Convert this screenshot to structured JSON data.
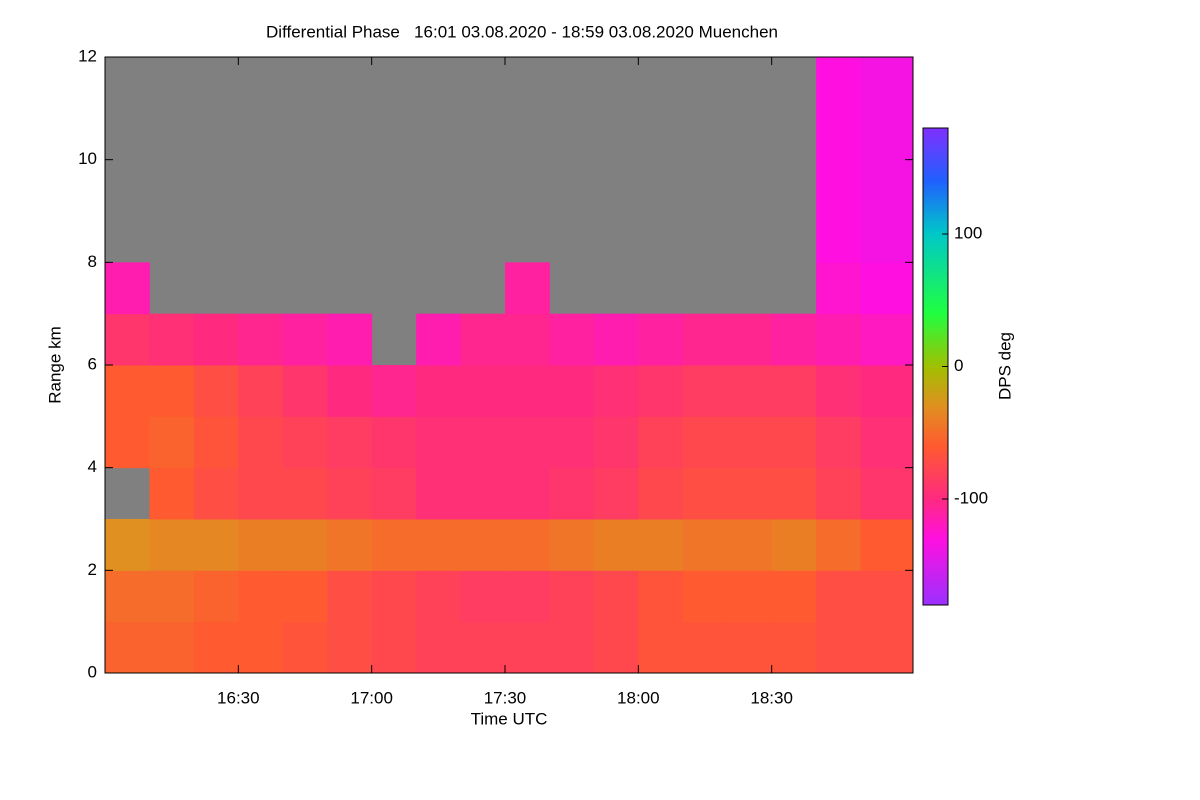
{
  "chart_data": {
    "type": "heatmap",
    "title": "Differential Phase   16:01 03.08.2020 - 18:59 03.08.2020 Muenchen",
    "xlabel": "Time UTC",
    "ylabel": "Range km",
    "colorbar_label": "DPS deg",
    "xlim": [
      16.0,
      19.03
    ],
    "xticks": [
      {
        "value": 16.5,
        "label": "16:30"
      },
      {
        "value": 17.0,
        "label": "17:00"
      },
      {
        "value": 17.5,
        "label": "17:30"
      },
      {
        "value": 18.0,
        "label": "18:00"
      },
      {
        "value": 18.5,
        "label": "18:30"
      }
    ],
    "ylim": [
      0,
      12
    ],
    "yticks": [
      0,
      2,
      4,
      6,
      8,
      10,
      12
    ],
    "clim": [
      -180,
      180
    ],
    "cticks": [
      -100,
      0,
      100
    ],
    "xbins": [
      16.0,
      16.1667,
      16.3333,
      16.5,
      16.6667,
      16.8333,
      17.0,
      17.1667,
      17.3333,
      17.5,
      17.6667,
      17.8333,
      18.0,
      18.1667,
      18.3333,
      18.5,
      18.6667,
      18.8333,
      19.03
    ],
    "ybins": [
      0,
      1,
      2,
      3,
      4,
      5,
      6,
      7,
      8,
      9,
      10,
      11,
      12
    ],
    "z": [
      [
        -55,
        -55,
        -60,
        -60,
        -65,
        -70,
        -75,
        -80,
        -80,
        -80,
        -80,
        -75,
        -65,
        -65,
        -65,
        -65,
        -70,
        -70
      ],
      [
        -50,
        -50,
        -55,
        -60,
        -60,
        -70,
        -75,
        -80,
        -85,
        -85,
        -80,
        -75,
        -65,
        -60,
        -60,
        -60,
        -70,
        -70
      ],
      [
        -30,
        -35,
        -35,
        -40,
        -40,
        -45,
        -50,
        -50,
        -50,
        -50,
        -45,
        -40,
        -40,
        -45,
        -45,
        -40,
        -50,
        -60
      ],
      [
        null,
        -60,
        -70,
        -75,
        -75,
        -80,
        -85,
        -95,
        -95,
        -95,
        -90,
        -85,
        -75,
        -70,
        -70,
        -70,
        -80,
        -90
      ],
      [
        -60,
        -55,
        -65,
        -75,
        -80,
        -85,
        -90,
        -95,
        -95,
        -95,
        -95,
        -90,
        -80,
        -75,
        -75,
        -75,
        -85,
        -95
      ],
      [
        -60,
        -60,
        -70,
        -80,
        -90,
        -100,
        -105,
        -100,
        -100,
        -100,
        -100,
        -95,
        -90,
        -85,
        -85,
        -85,
        -95,
        -100
      ],
      [
        -90,
        -95,
        -100,
        -105,
        -110,
        -115,
        null,
        -115,
        -105,
        -105,
        -110,
        -115,
        -110,
        -105,
        -105,
        -110,
        -115,
        -120
      ],
      [
        -115,
        null,
        null,
        null,
        null,
        null,
        null,
        null,
        null,
        -110,
        null,
        null,
        null,
        null,
        null,
        null,
        -125,
        -130
      ],
      [
        null,
        null,
        null,
        null,
        null,
        null,
        null,
        null,
        null,
        null,
        null,
        null,
        null,
        null,
        null,
        null,
        -130,
        -135
      ],
      [
        null,
        null,
        null,
        null,
        null,
        null,
        null,
        null,
        null,
        null,
        null,
        null,
        null,
        null,
        null,
        null,
        -130,
        -135
      ],
      [
        null,
        null,
        null,
        null,
        null,
        null,
        null,
        null,
        null,
        null,
        null,
        null,
        null,
        null,
        null,
        null,
        -130,
        -135
      ],
      [
        null,
        null,
        null,
        null,
        null,
        null,
        null,
        null,
        null,
        null,
        null,
        null,
        null,
        null,
        null,
        null,
        -130,
        -135
      ]
    ],
    "no_echo_color": "#808080",
    "colorscale": [
      {
        "value": -180,
        "color": "#9a30ff"
      },
      {
        "value": -130,
        "color": "#ff10e0"
      },
      {
        "value": -100,
        "color": "#ff2a80"
      },
      {
        "value": -60,
        "color": "#ff5a30"
      },
      {
        "value": -30,
        "color": "#e09020"
      },
      {
        "value": 0,
        "color": "#a0c000"
      },
      {
        "value": 40,
        "color": "#20ff40"
      },
      {
        "value": 100,
        "color": "#00c8c8"
      },
      {
        "value": 140,
        "color": "#2060ff"
      },
      {
        "value": 180,
        "color": "#8030ff"
      }
    ]
  }
}
